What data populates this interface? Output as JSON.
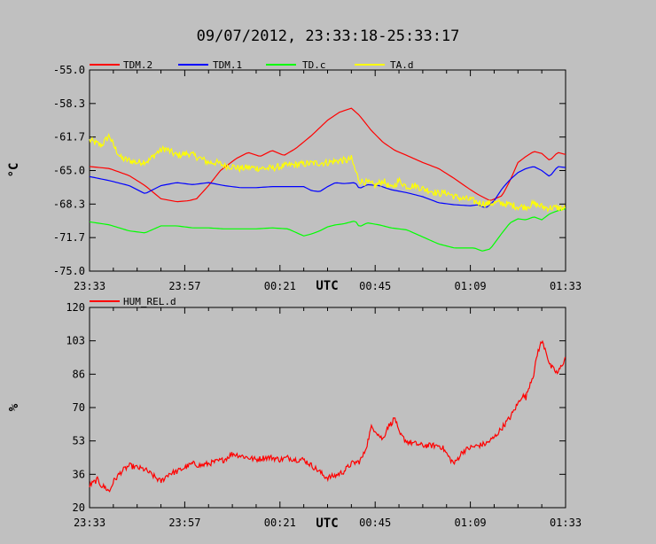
{
  "title": "09/07/2012, 23:33:18-25:33:17",
  "chart_data": [
    {
      "type": "line",
      "xlabel": "UTC",
      "ylabel": "°C",
      "x_ticks": [
        "23:33",
        "23:57",
        "00:21",
        "00:45",
        "01:09",
        "01:33"
      ],
      "x_tick_minutes": [
        0,
        24,
        48,
        72,
        96,
        120
      ],
      "xlim": [
        0,
        120
      ],
      "y_ticks": [
        "-55.0",
        "-58.3",
        "-61.7",
        "-65.0",
        "-68.3",
        "-71.7",
        "-75.0"
      ],
      "ylim": [
        -75.0,
        -55.0
      ],
      "legend_position": "top",
      "series": [
        {
          "name": "TDM.2",
          "color": "#ff0000",
          "noise": 0,
          "x": [
            0,
            5,
            10,
            14,
            18,
            22,
            25,
            27,
            30,
            33,
            37,
            40,
            43,
            46,
            49,
            52,
            56,
            60,
            63,
            66,
            68,
            71,
            74,
            77,
            80,
            84,
            88,
            92,
            96,
            98,
            100,
            101,
            104,
            106,
            108,
            110,
            112,
            114,
            116,
            118,
            120
          ],
          "y": [
            -64.6,
            -64.8,
            -65.5,
            -66.5,
            -67.8,
            -68.1,
            -68.0,
            -67.8,
            -66.5,
            -65.0,
            -63.8,
            -63.2,
            -63.6,
            -63.0,
            -63.5,
            -62.8,
            -61.5,
            -60.0,
            -59.2,
            -58.8,
            -59.5,
            -61.0,
            -62.2,
            -63.0,
            -63.5,
            -64.2,
            -64.8,
            -65.8,
            -66.9,
            -67.4,
            -67.8,
            -68.0,
            -67.5,
            -66.0,
            -64.2,
            -63.6,
            -63.1,
            -63.3,
            -64.0,
            -63.2,
            -63.4
          ]
        },
        {
          "name": "TDM.1",
          "color": "#0000ff",
          "noise": 0,
          "x": [
            0,
            5,
            10,
            14,
            18,
            22,
            26,
            30,
            34,
            38,
            42,
            46,
            50,
            54,
            56,
            58,
            60,
            62,
            64,
            67,
            68,
            70,
            73,
            76,
            80,
            84,
            88,
            92,
            96,
            98,
            99,
            100,
            102,
            104,
            106,
            108,
            110,
            112,
            114,
            116,
            118,
            120
          ],
          "y": [
            -65.6,
            -66.0,
            -66.5,
            -67.3,
            -66.5,
            -66.2,
            -66.4,
            -66.2,
            -66.5,
            -66.7,
            -66.7,
            -66.6,
            -66.6,
            -66.6,
            -67.0,
            -67.1,
            -66.6,
            -66.2,
            -66.3,
            -66.2,
            -66.8,
            -66.4,
            -66.5,
            -66.9,
            -67.2,
            -67.6,
            -68.2,
            -68.4,
            -68.5,
            -68.4,
            -68.6,
            -68.7,
            -68.0,
            -66.8,
            -65.9,
            -65.2,
            -64.8,
            -64.6,
            -65.0,
            -65.6,
            -64.6,
            -64.7
          ]
        },
        {
          "name": "TD.c",
          "color": "#00ff00",
          "noise": 0,
          "x": [
            0,
            5,
            10,
            14,
            18,
            22,
            26,
            30,
            34,
            38,
            42,
            46,
            50,
            54,
            56,
            58,
            60,
            62,
            64,
            67,
            68,
            70,
            73,
            76,
            80,
            84,
            88,
            92,
            95,
            97,
            99,
            101,
            104,
            106,
            108,
            110,
            112,
            114,
            116,
            118,
            120
          ],
          "y": [
            -70.1,
            -70.4,
            -71.0,
            -71.2,
            -70.5,
            -70.5,
            -70.7,
            -70.7,
            -70.8,
            -70.8,
            -70.8,
            -70.7,
            -70.8,
            -71.5,
            -71.3,
            -71.0,
            -70.6,
            -70.4,
            -70.3,
            -70.0,
            -70.6,
            -70.2,
            -70.4,
            -70.7,
            -70.9,
            -71.6,
            -72.3,
            -72.7,
            -72.7,
            -72.7,
            -73.0,
            -72.8,
            -71.2,
            -70.2,
            -69.8,
            -69.9,
            -69.6,
            -69.9,
            -69.3,
            -69.0,
            -68.8
          ]
        },
        {
          "name": "TA.d",
          "color": "#ffff00",
          "noise": 0.35,
          "x": [
            0,
            3,
            5,
            6,
            8,
            10,
            12,
            15,
            17,
            19,
            22,
            25,
            28,
            30,
            32,
            34,
            36,
            38,
            40,
            45,
            50,
            55,
            60,
            63,
            65,
            66,
            67,
            68,
            70,
            72,
            74,
            76,
            78,
            80,
            82,
            84,
            86,
            88,
            90,
            92,
            94,
            96,
            98,
            100,
            103,
            106,
            108,
            110,
            112,
            115,
            118,
            120
          ],
          "y": [
            -62.0,
            -62.5,
            -61.5,
            -62.5,
            -63.8,
            -64.0,
            -64.2,
            -64.0,
            -63.2,
            -62.8,
            -63.5,
            -63.3,
            -63.8,
            -64.2,
            -64.2,
            -64.5,
            -64.6,
            -64.8,
            -64.7,
            -64.8,
            -64.5,
            -64.3,
            -64.2,
            -64.0,
            -64.0,
            -63.8,
            -65.0,
            -66.0,
            -66.2,
            -66.5,
            -66.0,
            -66.8,
            -66.0,
            -66.6,
            -66.5,
            -66.8,
            -67.0,
            -67.3,
            -67.2,
            -67.6,
            -67.8,
            -67.9,
            -68.2,
            -68.3,
            -68.2,
            -68.4,
            -68.6,
            -68.6,
            -68.3,
            -68.7,
            -68.7,
            -68.8
          ]
        }
      ]
    },
    {
      "type": "line",
      "xlabel": "UTC",
      "ylabel": "%",
      "x_ticks": [
        "23:33",
        "23:57",
        "00:21",
        "00:45",
        "01:09",
        "01:33"
      ],
      "x_tick_minutes": [
        0,
        24,
        48,
        72,
        96,
        120
      ],
      "xlim": [
        0,
        120
      ],
      "y_ticks": [
        "120",
        "103",
        "86",
        "70",
        "53",
        "36",
        "20"
      ],
      "ylim": [
        20,
        120
      ],
      "legend_position": "top-left",
      "series": [
        {
          "name": "HUM_REL.d",
          "color": "#ff0000",
          "noise": 1.4,
          "x": [
            0,
            2,
            3,
            4,
            5,
            6,
            8,
            10,
            12,
            14,
            16,
            18,
            19,
            20,
            22,
            24,
            26,
            28,
            30,
            32,
            34,
            36,
            38,
            40,
            42,
            44,
            46,
            48,
            50,
            52,
            54,
            56,
            58,
            59,
            60,
            62,
            64,
            66,
            68,
            69,
            70,
            71,
            72,
            73,
            74,
            75,
            76,
            77,
            78,
            80,
            82,
            84,
            86,
            88,
            89,
            90,
            91,
            92,
            94,
            96,
            98,
            100,
            102,
            104,
            106,
            108,
            109,
            110,
            111,
            112,
            113,
            114,
            115,
            116,
            118,
            120
          ],
          "y": [
            31,
            34,
            31,
            30,
            28,
            33,
            38,
            41,
            40,
            39,
            36,
            33,
            35,
            37,
            38,
            40,
            42,
            41,
            42,
            43,
            44,
            47,
            46,
            45,
            44,
            45,
            45,
            44,
            45,
            44,
            44,
            41,
            38,
            36,
            35,
            36,
            38,
            42,
            43,
            46,
            52,
            60,
            59,
            56,
            54,
            60,
            62,
            65,
            57,
            53,
            52,
            51,
            51,
            51,
            50,
            47,
            44,
            42,
            48,
            50,
            51,
            52,
            55,
            60,
            65,
            72,
            76,
            75,
            82,
            87,
            98,
            103,
            99,
            91,
            87,
            95
          ]
        }
      ]
    }
  ],
  "legend": {
    "top": [
      {
        "label": "TDM.2",
        "color": "#ff0000"
      },
      {
        "label": "TDM.1",
        "color": "#0000ff"
      },
      {
        "label": "TD.c",
        "color": "#00ff00"
      },
      {
        "label": "TA.d",
        "color": "#ffff00"
      }
    ],
    "bottom": [
      {
        "label": "HUM_REL.d",
        "color": "#ff0000"
      }
    ]
  }
}
